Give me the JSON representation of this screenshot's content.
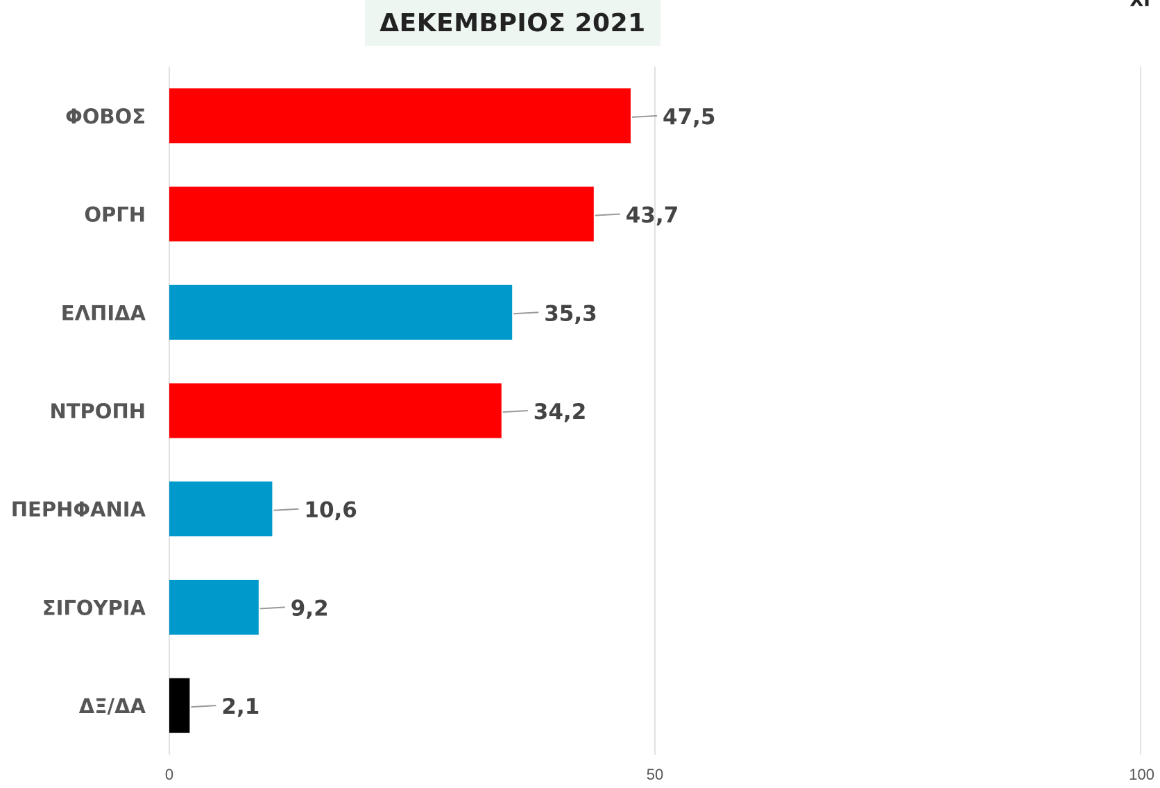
{
  "chart_data": {
    "type": "bar",
    "orientation": "horizontal",
    "title": "ΔΕΚΕΜΒΡΙΟΣ 2021",
    "categories": [
      "ΦΟΒΟΣ",
      "ΟΡΓΗ",
      "ΕΛΠΙΔΑ",
      "ΝΤΡΟΠΗ",
      "ΠΕΡΗΦΑΝΙΑ",
      "ΣΙΓΟΥΡΙΑ",
      "ΔΞ/ΔΑ"
    ],
    "values": [
      47.5,
      43.7,
      35.3,
      34.2,
      10.6,
      9.2,
      2.1
    ],
    "value_labels": [
      "47,5",
      "43,7",
      "35,3",
      "34,2",
      "10,6",
      "9,2",
      "2,1"
    ],
    "colors": [
      "#ff0000",
      "#ff0000",
      "#0099cc",
      "#ff0000",
      "#0099cc",
      "#0099cc",
      "#000000"
    ],
    "xlim": [
      0,
      100
    ],
    "xticks": [
      0,
      50,
      100
    ],
    "xtick_labels": [
      "0",
      "50",
      "100"
    ],
    "grid": true,
    "xlabel": "",
    "ylabel": ""
  },
  "corner_mark": "ΧΙ"
}
